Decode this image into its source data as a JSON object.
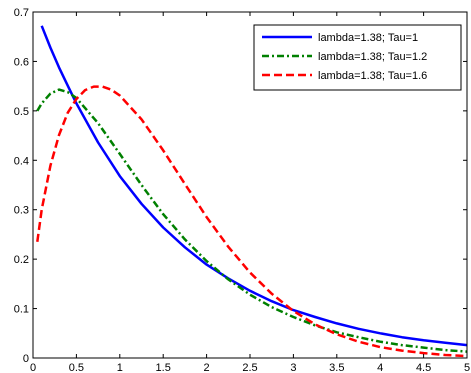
{
  "chart_data": {
    "type": "line",
    "title": "",
    "xlabel": "",
    "ylabel": "",
    "xlim": [
      0,
      5
    ],
    "ylim": [
      0,
      0.7
    ],
    "xticks": [
      0,
      0.5,
      1,
      1.5,
      2,
      2.5,
      3,
      3.5,
      4,
      4.5,
      5
    ],
    "xtick_labels": [
      "0",
      "0.5",
      "1",
      "1.5",
      "2",
      "2.5",
      "3",
      "3.5",
      "4",
      "4.5",
      "5"
    ],
    "yticks": [
      0,
      0.1,
      0.2,
      0.3,
      0.4,
      0.5,
      0.6,
      0.7
    ],
    "ytick_labels": [
      "0",
      "0.1",
      "0.2",
      "0.3",
      "0.4",
      "0.5",
      "0.6",
      "0.7"
    ],
    "grid": false,
    "legend_position": "top-right",
    "series": [
      {
        "name": "lambda=1.38; Tau=1",
        "color": "#0000ff",
        "line_style": "solid",
        "x": [
          0.1,
          0.2,
          0.3,
          0.4,
          0.5,
          0.75,
          1,
          1.25,
          1.5,
          1.75,
          2,
          2.25,
          2.5,
          2.75,
          3,
          3.25,
          3.5,
          3.75,
          4,
          4.25,
          4.5,
          4.75,
          5
        ],
        "y": [
          0.672,
          0.628,
          0.588,
          0.551,
          0.515,
          0.436,
          0.368,
          0.312,
          0.264,
          0.224,
          0.189,
          0.161,
          0.136,
          0.115,
          0.097,
          0.083,
          0.07,
          0.059,
          0.05,
          0.042,
          0.036,
          0.031,
          0.026
        ]
      },
      {
        "name": "lambda=1.38; Tau=1.2",
        "color": "#008000",
        "line_style": "dashdot",
        "x": [
          0.05,
          0.1,
          0.2,
          0.3,
          0.4,
          0.5,
          0.75,
          1,
          1.25,
          1.5,
          1.75,
          2,
          2.25,
          2.5,
          2.75,
          3,
          3.25,
          3.5,
          3.75,
          4,
          4.25,
          4.5,
          4.75,
          5
        ],
        "y": [
          0.5,
          0.515,
          0.535,
          0.543,
          0.538,
          0.526,
          0.475,
          0.413,
          0.35,
          0.291,
          0.24,
          0.196,
          0.159,
          0.128,
          0.103,
          0.083,
          0.066,
          0.052,
          0.042,
          0.033,
          0.026,
          0.021,
          0.016,
          0.013
        ]
      },
      {
        "name": "lambda=1.38; Tau=1.6",
        "color": "#ff0000",
        "line_style": "dashed",
        "x": [
          0.05,
          0.1,
          0.2,
          0.3,
          0.4,
          0.5,
          0.6,
          0.7,
          0.8,
          0.9,
          1,
          1.25,
          1.5,
          1.75,
          2,
          2.25,
          2.5,
          2.75,
          3,
          3.25,
          3.5,
          3.75,
          4,
          4.25,
          4.5,
          4.75,
          5
        ],
        "y": [
          0.235,
          0.3,
          0.389,
          0.451,
          0.496,
          0.524,
          0.542,
          0.549,
          0.549,
          0.543,
          0.531,
          0.483,
          0.42,
          0.352,
          0.285,
          0.225,
          0.173,
          0.13,
          0.095,
          0.068,
          0.048,
          0.033,
          0.022,
          0.015,
          0.01,
          0.006,
          0.004
        ]
      }
    ]
  }
}
